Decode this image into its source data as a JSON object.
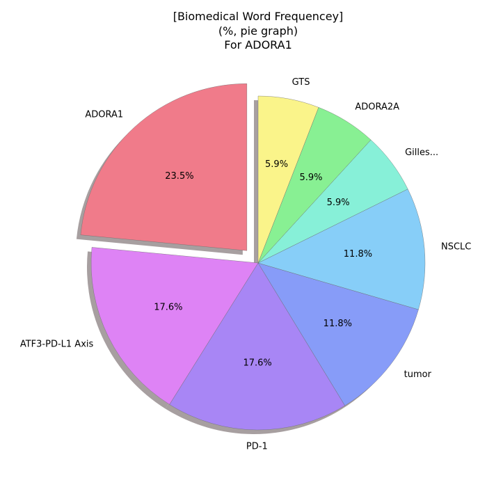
{
  "chart_data": {
    "type": "pie",
    "title_lines": [
      "[Biomedical Word Frequencey]",
      "(%, pie graph)",
      "For ADORA1"
    ],
    "start_angle_deg": 90,
    "direction": "counterclockwise",
    "shadow": true,
    "slices": [
      {
        "label": "ADORA1",
        "value": 23.5,
        "pct_label": "23.5%",
        "color": "#f07b8a",
        "explode": true
      },
      {
        "label": "ATF3-PD-L1 Axis",
        "value": 17.6,
        "pct_label": "17.6%",
        "color": "#de83f5",
        "explode": false
      },
      {
        "label": "PD-1",
        "value": 17.6,
        "pct_label": "17.6%",
        "color": "#a886f5",
        "explode": false
      },
      {
        "label": "tumor",
        "value": 11.8,
        "pct_label": "11.8%",
        "color": "#879cf8",
        "explode": false
      },
      {
        "label": "NSCLC",
        "value": 11.8,
        "pct_label": "11.8%",
        "color": "#87cef8",
        "explode": false
      },
      {
        "label": "Gilles...",
        "value": 5.9,
        "pct_label": "5.9%",
        "color": "#87f0d8",
        "explode": false
      },
      {
        "label": "ADORA2A",
        "value": 5.9,
        "pct_label": "5.9%",
        "color": "#88f093",
        "explode": false
      },
      {
        "label": "GTS",
        "value": 5.9,
        "pct_label": "5.9%",
        "color": "#faf48a",
        "explode": false
      }
    ]
  }
}
